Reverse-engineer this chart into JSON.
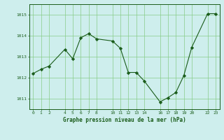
{
  "x": [
    0,
    1,
    2,
    4,
    5,
    6,
    7,
    8,
    10,
    11,
    12,
    13,
    14,
    16,
    17,
    18,
    19,
    20,
    22,
    23
  ],
  "y": [
    1012.2,
    1012.4,
    1012.55,
    1013.35,
    1012.9,
    1013.9,
    1014.1,
    1013.85,
    1013.75,
    1013.4,
    1012.25,
    1012.25,
    1011.85,
    1010.85,
    1011.05,
    1011.3,
    1012.1,
    1013.45,
    1015.05,
    1015.05
  ],
  "bg_color": "#ceeeed",
  "line_color": "#1a5c1a",
  "marker_color": "#1a5c1a",
  "grid_color": "#88cc88",
  "text_color": "#1a5c1a",
  "xlabel": "Graphe pression niveau de la mer (hPa)",
  "ylim": [
    1010.5,
    1015.5
  ],
  "yticks": [
    1011,
    1012,
    1013,
    1014,
    1015
  ],
  "xticks": [
    0,
    1,
    2,
    4,
    5,
    6,
    7,
    8,
    10,
    11,
    12,
    13,
    14,
    16,
    17,
    18,
    19,
    20,
    22,
    23
  ],
  "xlim": [
    -0.5,
    23.5
  ]
}
